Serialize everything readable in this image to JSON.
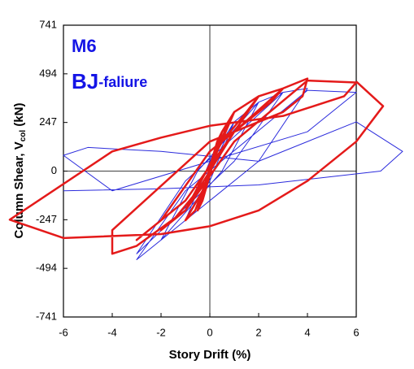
{
  "chart_data": {
    "type": "line",
    "x_label": "Story Drift (%)",
    "y_label": "Column Shear, V",
    "y_label_sub": "col",
    "y_label_end": " (kN)",
    "annotations": [
      "M6",
      "BJ",
      "-faliure"
    ],
    "annotation_color": "#1414e6",
    "xlim": [
      -6,
      6
    ],
    "ylim": [
      -741,
      741
    ],
    "xticks": [
      -6,
      -4,
      -2,
      0,
      2,
      4,
      6
    ],
    "yticks": [
      -741,
      -494,
      -247,
      0,
      247,
      494,
      741
    ],
    "zero_lines": true,
    "series": [
      {
        "color": "#2b2bdc",
        "width": 1,
        "x": [
          0,
          1,
          0,
          -1,
          0,
          1,
          2,
          0.5,
          -2,
          -0.5,
          2,
          3,
          1,
          -3,
          -1,
          3,
          4,
          2,
          -3,
          -1,
          4,
          6,
          4,
          0,
          -4,
          -6,
          -5,
          -2,
          2,
          6,
          7.9,
          7,
          2,
          -2,
          -6
        ],
        "values": [
          0,
          250,
          -50,
          -250,
          50,
          250,
          350,
          0,
          -350,
          0,
          350,
          400,
          50,
          -420,
          -50,
          400,
          420,
          50,
          -450,
          -100,
          410,
          400,
          200,
          50,
          -100,
          80,
          120,
          100,
          50,
          250,
          100,
          0,
          -70,
          -90,
          -100
        ]
      },
      {
        "color": "#e41a1a",
        "width": 2.5,
        "x": [
          0,
          0.5,
          0.3,
          -0.5,
          -0.3,
          0.5,
          1,
          0.6,
          -0.3,
          -1,
          -0.6,
          0.3,
          1,
          2,
          1.5,
          0.5,
          -1,
          -2,
          -1.5,
          -0.5,
          1,
          2,
          3,
          2.5,
          0,
          -2,
          -3,
          -2.5,
          -1,
          1,
          3,
          4,
          3.8,
          3,
          0,
          -4,
          -4,
          -3,
          -1,
          1,
          4,
          6,
          5.5,
          3,
          0,
          -2,
          -4,
          -8.2,
          -6,
          -2,
          0,
          2,
          4,
          6,
          7.1,
          6
        ],
        "values": [
          0,
          200,
          150,
          -200,
          -150,
          200,
          300,
          200,
          -100,
          -250,
          -200,
          100,
          300,
          380,
          300,
          150,
          -200,
          -300,
          -250,
          -100,
          200,
          380,
          420,
          350,
          100,
          -250,
          -350,
          -300,
          -150,
          200,
          420,
          470,
          380,
          300,
          150,
          -300,
          -420,
          -380,
          -200,
          150,
          460,
          450,
          380,
          280,
          230,
          170,
          100,
          -247,
          -340,
          -320,
          -280,
          -200,
          -50,
          150,
          330,
          455
        ]
      }
    ]
  }
}
